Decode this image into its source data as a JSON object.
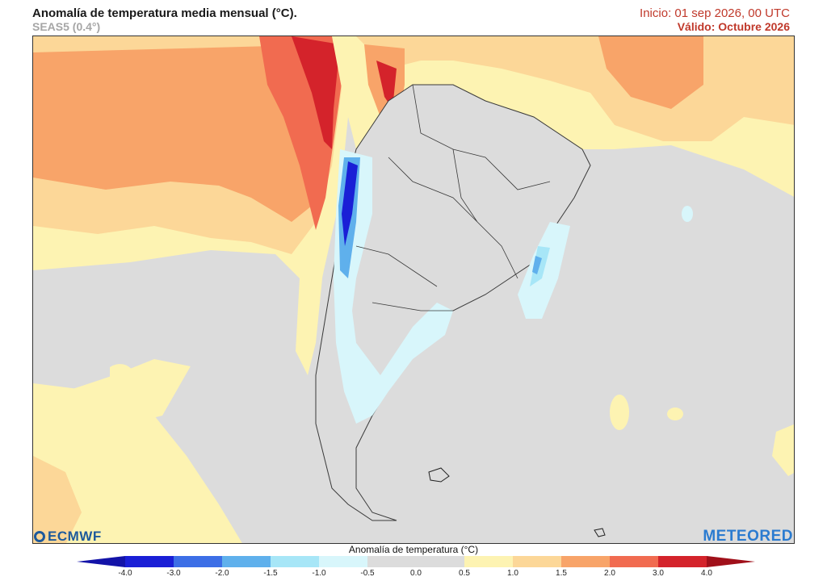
{
  "header": {
    "title": "Anomalía de temperatura media mensual (°C).",
    "subtitle": "SEAS5 (0.4°)",
    "init": "Inicio: 01 sep 2026, 00 UTC",
    "valid": "Válido: Octubre 2026"
  },
  "logos": {
    "left": "ECMWF",
    "right": "METEORED"
  },
  "legend": {
    "title": "Anomalía de temperatura (°C)",
    "ticks": [
      "-4.0",
      "-3.0",
      "-2.0",
      "-1.5",
      "-1.0",
      "-0.5",
      "0.0",
      "0.5",
      "1.0",
      "1.5",
      "2.0",
      "3.0",
      "4.0"
    ],
    "colors": [
      "#1a1fd6",
      "#3c6ee6",
      "#5fb0ec",
      "#a7e6f7",
      "#d8f6fb",
      "#dcdcdc",
      "#dcdcdc",
      "#fdf3b2",
      "#fcd798",
      "#f8a469",
      "#f16b50",
      "#d4232b"
    ],
    "end_low": "#1313a8",
    "end_high": "#a0101a"
  },
  "map_colors": {
    "neutral": "#dcdcdc",
    "pale_yellow": "#fdf3b2",
    "light_orange": "#fcd798",
    "orange": "#f8a469",
    "red_orange": "#f16b50",
    "red": "#d4232b",
    "light_blue": "#d8f6fb",
    "mid_blue": "#a7e6f7",
    "blue": "#5fb0ec",
    "dark_blue": "#1a1fd6",
    "land_border": "#3a3a3a"
  }
}
